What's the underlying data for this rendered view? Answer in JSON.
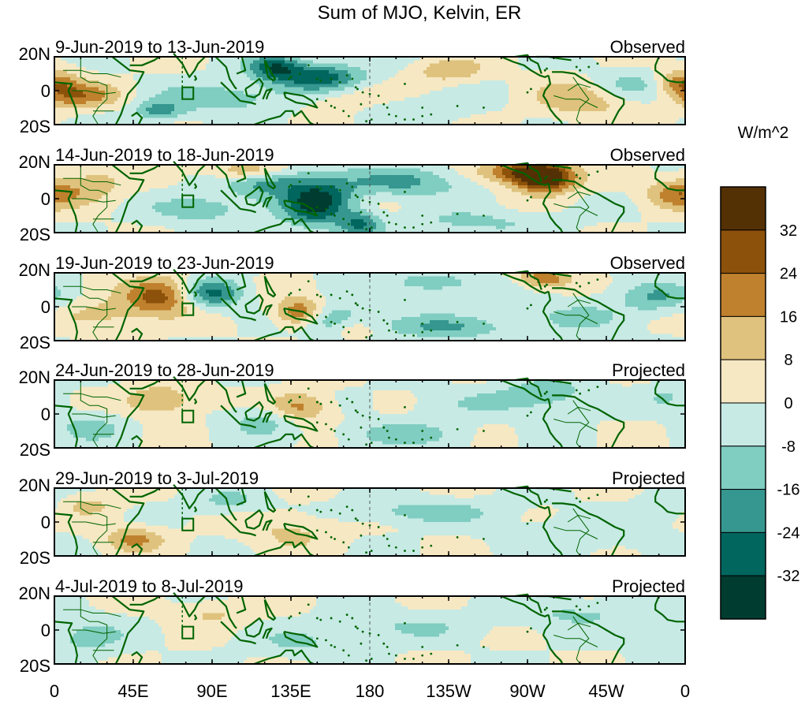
{
  "title": "Sum of MJO, Kelvin, ER",
  "units_label": "W/m^2",
  "panels": [
    {
      "period": "9-Jun-2019 to 13-Jun-2019",
      "status": "Observed"
    },
    {
      "period": "14-Jun-2019 to 18-Jun-2019",
      "status": "Observed"
    },
    {
      "period": "19-Jun-2019 to 23-Jun-2019",
      "status": "Observed"
    },
    {
      "period": "24-Jun-2019 to 28-Jun-2019",
      "status": "Projected"
    },
    {
      "period": "29-Jun-2019 to 3-Jul-2019",
      "status": "Projected"
    },
    {
      "period": "4-Jul-2019 to 8-Jul-2019",
      "status": "Projected"
    }
  ],
  "lat_labels": [
    "20N",
    "0",
    "20S"
  ],
  "lon_labels": [
    "0",
    "45E",
    "90E",
    "135E",
    "180",
    "135W",
    "90W",
    "45W",
    "0"
  ],
  "colorbar": {
    "tick_labels": [
      "32",
      "24",
      "16",
      "8",
      "0",
      "-8",
      "-16",
      "-24",
      "-32"
    ],
    "colors": [
      "#543005",
      "#8c510a",
      "#bf812d",
      "#dfc27d",
      "#f6e8c3",
      "#c7eae5",
      "#80cdc1",
      "#35978f",
      "#01665e",
      "#003c30"
    ]
  },
  "colors": {
    "coastline": "#006400",
    "dateline": "#555555"
  }
}
